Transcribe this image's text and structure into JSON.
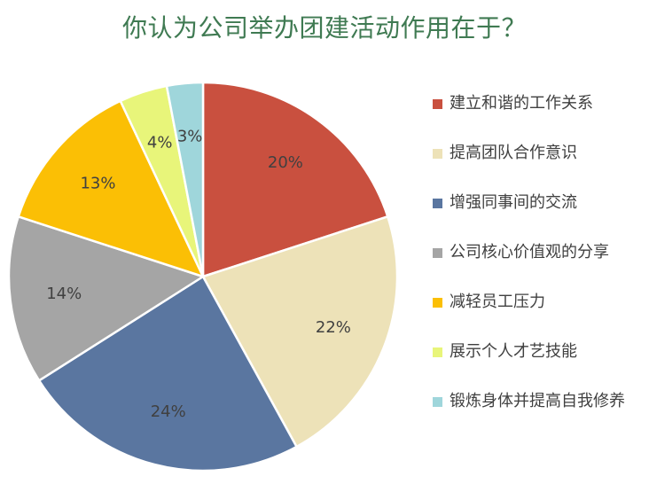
{
  "chart_data": {
    "type": "pie",
    "title": "你认为公司举办团建活动作用在于？",
    "categories": [
      "建立和谐的工作关系",
      "提高团队合作意识",
      "增强同事间的交流",
      "公司核心价值观的分享",
      "减轻员工压力",
      "展示个人才艺技能",
      "锻炼身体并提高自我修养"
    ],
    "values": [
      20,
      22,
      24,
      14,
      13,
      4,
      3
    ],
    "value_labels": [
      "20%",
      "22%",
      "24%",
      "14%",
      "13%",
      "4%",
      "3%"
    ],
    "colors": [
      "#c9503f",
      "#ede2b8",
      "#5a76a0",
      "#a5a5a5",
      "#fbbf05",
      "#e8f57a",
      "#9fd6db"
    ],
    "start": "12 o'clock",
    "direction": "clockwise",
    "legend": "right"
  }
}
